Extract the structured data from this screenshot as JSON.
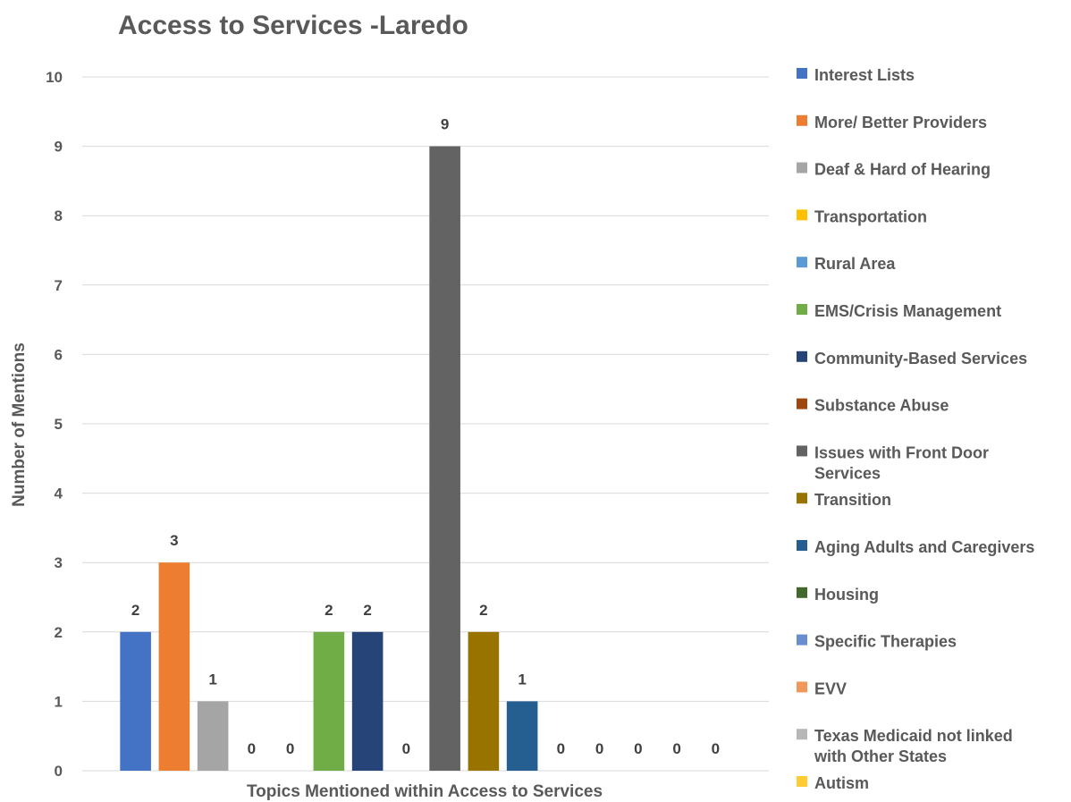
{
  "chart_data": {
    "type": "bar",
    "title": "Access to Services -Laredo",
    "xlabel": "Topics Mentioned within Access to Services",
    "ylabel": "Number of Mentions",
    "ylim": [
      0,
      10
    ],
    "yticks": [
      "0",
      "1",
      "2",
      "3",
      "4",
      "5",
      "6",
      "7",
      "8",
      "9",
      "10"
    ],
    "grid": true,
    "legend_position": "right",
    "series": [
      {
        "name": "Interest Lists",
        "values": [
          2
        ],
        "color": "#4472c4"
      },
      {
        "name": "More/ Better Providers",
        "values": [
          3
        ],
        "color": "#ed7d31"
      },
      {
        "name": "Deaf & Hard of Hearing",
        "values": [
          1
        ],
        "color": "#a5a5a5"
      },
      {
        "name": "Transportation",
        "values": [
          0
        ],
        "color": "#ffc000"
      },
      {
        "name": "Rural Area",
        "values": [
          0
        ],
        "color": "#5b9bd5"
      },
      {
        "name": "EMS/Crisis Management",
        "values": [
          2
        ],
        "color": "#70ad47"
      },
      {
        "name": "Community-Based Services",
        "values": [
          2
        ],
        "color": "#264478"
      },
      {
        "name": "Substance Abuse",
        "values": [
          0
        ],
        "color": "#9e480e"
      },
      {
        "name": "Issues with Front Door Services",
        "values": [
          9
        ],
        "color": "#636363"
      },
      {
        "name": "Transition",
        "values": [
          2
        ],
        "color": "#997300"
      },
      {
        "name": "Aging Adults and Caregivers",
        "values": [
          1
        ],
        "color": "#255e91"
      },
      {
        "name": "Housing",
        "values": [
          0
        ],
        "color": "#43682b"
      },
      {
        "name": "Specific Therapies",
        "values": [
          0
        ],
        "color": "#698ed0"
      },
      {
        "name": "EVV",
        "values": [
          0
        ],
        "color": "#f1975a"
      },
      {
        "name": "Texas Medicaid not linked with Other States",
        "values": [
          0
        ],
        "color": "#b7b7b7"
      },
      {
        "name": "Autism",
        "values": [
          0
        ],
        "color": "#ffcd33"
      }
    ],
    "legend_lines": [
      [
        "Interest Lists"
      ],
      [
        "More/ Better Providers"
      ],
      [
        "Deaf & Hard of Hearing"
      ],
      [
        "Transportation"
      ],
      [
        "Rural Area"
      ],
      [
        "EMS/Crisis Management"
      ],
      [
        "Community-Based Services"
      ],
      [
        "Substance Abuse"
      ],
      [
        "Issues with Front Door",
        "Services"
      ],
      [
        "Transition"
      ],
      [
        "Aging Adults and Caregivers"
      ],
      [
        "Housing"
      ],
      [
        "Specific Therapies"
      ],
      [
        "EVV"
      ],
      [
        "Texas Medicaid not linked",
        "with Other States"
      ],
      [
        "Autism"
      ]
    ]
  }
}
